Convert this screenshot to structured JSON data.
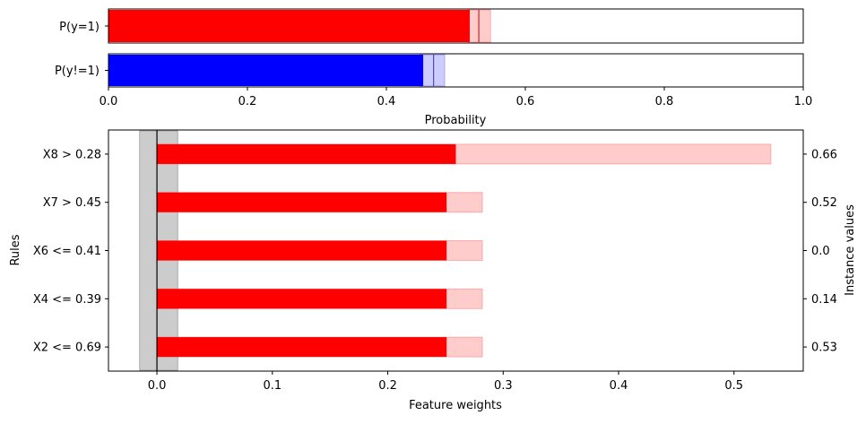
{
  "chart_data": [
    {
      "type": "bar",
      "orientation": "horizontal",
      "categories": [
        "P(y=1)",
        "P(y!=1)"
      ],
      "series": [
        {
          "values": [
            0.52,
            0.453
          ],
          "interval_low": [
            0.517,
            0.448
          ],
          "interval_high": [
            0.55,
            0.484
          ],
          "median_marker": [
            0.533,
            0.468
          ]
        }
      ],
      "xlabel": "Probability",
      "xlim": [
        0,
        1
      ],
      "xticks": [
        "0.0",
        "0.2",
        "0.4",
        "0.6",
        "0.8",
        "1.0"
      ],
      "colors": [
        "#ff0000",
        "#0000ff"
      ]
    },
    {
      "type": "bar",
      "orientation": "horizontal",
      "categories": [
        "X8 > 0.28",
        "X7 > 0.45",
        "X6 <= 0.41",
        "X4 <= 0.39",
        "X2 <= 0.69"
      ],
      "series": [
        {
          "values": [
            0.259,
            0.251,
            0.251,
            0.251,
            0.251
          ],
          "interval_high": [
            0.532,
            0.282,
            0.282,
            0.282,
            0.282
          ]
        }
      ],
      "baseline_band": [
        -0.015,
        0.018
      ],
      "xlabel": "Feature weights",
      "ylabel": "Rules",
      "y2label": "Instance values",
      "instance_values": [
        "0.66",
        "0.52",
        "0.0",
        "0.14",
        "0.53"
      ],
      "xlim": [
        -0.042,
        0.56
      ],
      "xticks": [
        "-0.1",
        "0.0",
        "0.1",
        "0.2",
        "0.3",
        "0.4",
        "0.5"
      ],
      "xtick_values": [
        -0.1,
        0.0,
        0.1,
        0.2,
        0.3,
        0.4,
        0.5
      ],
      "colors": [
        "#ff0000"
      ]
    }
  ]
}
